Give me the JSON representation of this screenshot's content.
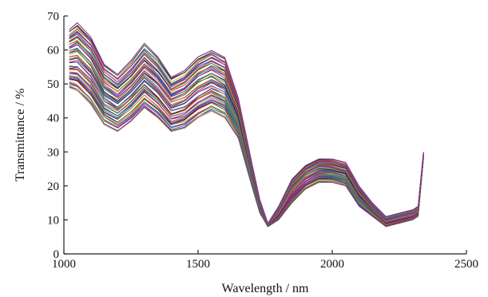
{
  "chart_data": {
    "type": "line",
    "xlabel": "Wavelength / nm",
    "ylabel": "Transmittance / %",
    "xlim": [
      1000,
      2500
    ],
    "ylim": [
      0,
      70
    ],
    "xticks": [
      1000,
      1500,
      2000,
      2500
    ],
    "yticks": [
      0,
      10,
      20,
      30,
      40,
      50,
      60,
      70
    ],
    "grid": false,
    "legend": "none",
    "series_count": 60,
    "series_colors": [
      "#e8702a",
      "#1f3fbf",
      "#2e8b57",
      "#c2185b",
      "#7b1fa2",
      "#00897b",
      "#d4a017",
      "#3949ab",
      "#e53935",
      "#222222",
      "#43a047",
      "#8e24aa"
    ],
    "representative_series": {
      "x": [
        1020,
        1050,
        1100,
        1150,
        1200,
        1250,
        1300,
        1350,
        1400,
        1450,
        1500,
        1550,
        1600,
        1650,
        1700,
        1730,
        1760,
        1800,
        1850,
        1900,
        1950,
        2000,
        2050,
        2100,
        2150,
        2200,
        2250,
        2300,
        2320,
        2340
      ],
      "upper": [
        66,
        68,
        64,
        56,
        53,
        57,
        62,
        58,
        52,
        54,
        58,
        60,
        58,
        46,
        27,
        16,
        9,
        14,
        22,
        26,
        28,
        28,
        27,
        20,
        15,
        11,
        12,
        13,
        14,
        30
      ],
      "lower": [
        49,
        48,
        44,
        38,
        36,
        39,
        43,
        40,
        36,
        37,
        40,
        42,
        40,
        34,
        20,
        12,
        8,
        10,
        15,
        19,
        21,
        21,
        20,
        14,
        11,
        8,
        9,
        10,
        11,
        28
      ]
    }
  }
}
